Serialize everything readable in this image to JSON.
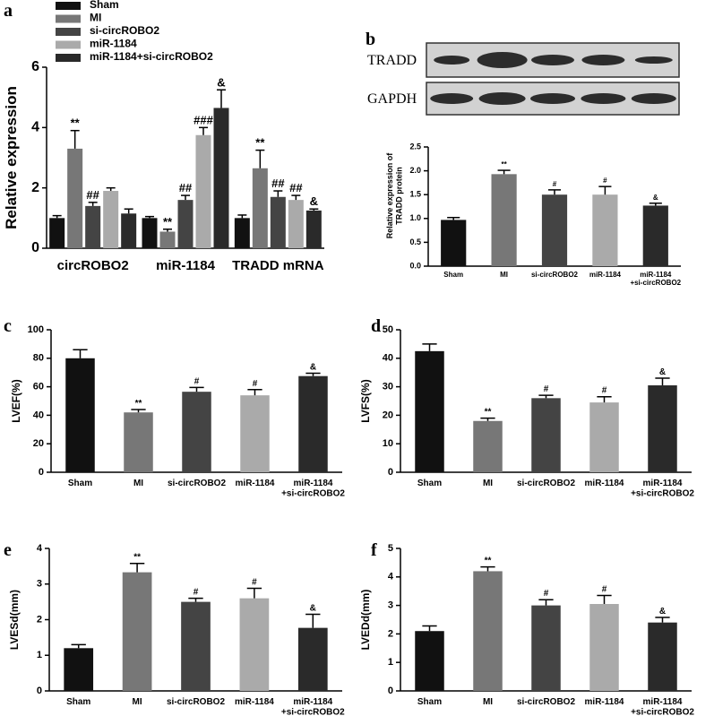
{
  "chart_data": [
    {
      "type": "grouped-bar",
      "panel_label": "a",
      "y_label": "Relative expression",
      "categories": [
        "circROBO2",
        "miR-1184",
        "TRADD mRNA"
      ],
      "series": [
        {
          "name": "Sham",
          "color": "#111111",
          "values": [
            1.0,
            1.0,
            1.0
          ],
          "errors": [
            0.08,
            0.05,
            0.1
          ],
          "annotations": [
            null,
            null,
            null
          ]
        },
        {
          "name": "MI",
          "color": "#777777",
          "values": [
            3.3,
            0.55,
            2.65
          ],
          "errors": [
            0.6,
            0.08,
            0.6
          ],
          "annotations": [
            "**",
            "**",
            "**"
          ]
        },
        {
          "name": "si-circROBO2",
          "color": "#444444",
          "values": [
            1.4,
            1.6,
            1.7
          ],
          "errors": [
            0.12,
            0.15,
            0.2
          ],
          "annotations": [
            "##",
            "##",
            "##"
          ]
        },
        {
          "name": "miR-1184",
          "color": "#aaaaaa",
          "values": [
            1.9,
            3.75,
            1.6
          ],
          "errors": [
            0.1,
            0.25,
            0.15
          ],
          "annotations": [
            null,
            "###",
            "##"
          ]
        },
        {
          "name": "miR-1184+si-circROBO2",
          "color": "#2a2a2a",
          "values": [
            1.15,
            4.65,
            1.25
          ],
          "errors": [
            0.15,
            0.6,
            0.05
          ],
          "annotations": [
            null,
            "&",
            "&"
          ]
        }
      ],
      "ylim": [
        0,
        6
      ],
      "yticks": [
        0,
        2,
        4,
        6
      ]
    },
    {
      "type": "bar",
      "panel_label": "b",
      "blot_labels": [
        "TRADD",
        "GAPDH"
      ],
      "y_label": "Relative expression of\nTRADD protein",
      "categories": [
        "Sham",
        "MI",
        "si-circROBO2",
        "miR-1184",
        "miR-1184\n+si-circROBO2"
      ],
      "values": [
        0.97,
        1.93,
        1.5,
        1.5,
        1.27
      ],
      "errors": [
        0.05,
        0.08,
        0.1,
        0.17,
        0.05
      ],
      "annotations": [
        null,
        "**",
        "#",
        "#",
        "&"
      ],
      "colors": [
        "#111111",
        "#777777",
        "#444444",
        "#aaaaaa",
        "#2a2a2a"
      ],
      "ylim": [
        0,
        2.5
      ],
      "yticks": [
        {
          "value": 0,
          "label": "0.0"
        },
        0.5,
        {
          "value": 1,
          "label": "1.0"
        },
        1.5,
        {
          "value": 2,
          "label": "2.0"
        },
        2.5
      ]
    },
    {
      "type": "bar",
      "panel_label": "c",
      "y_label": "LVEF(%)",
      "categories": [
        "Sham",
        "MI",
        "si-circROBO2",
        "miR-1184",
        "miR-1184\n+si-circROBO2"
      ],
      "values": [
        80,
        42,
        56.5,
        54,
        67.5
      ],
      "errors": [
        6,
        2,
        3,
        4,
        2
      ],
      "annotations": [
        null,
        "**",
        "#",
        "#",
        "&"
      ],
      "colors": [
        "#111111",
        "#777777",
        "#444444",
        "#aaaaaa",
        "#2a2a2a"
      ],
      "ylim": [
        0,
        100
      ],
      "yticks": [
        0,
        20,
        40,
        60,
        80,
        100
      ]
    },
    {
      "type": "bar",
      "panel_label": "d",
      "y_label": "LVFS(%)",
      "categories": [
        "Sham",
        "MI",
        "si-circROBO2",
        "miR-1184",
        "miR-1184\n+si-circROBO2"
      ],
      "values": [
        42.5,
        18,
        26,
        24.5,
        30.5
      ],
      "errors": [
        2.5,
        1,
        1,
        2,
        2.5
      ],
      "annotations": [
        null,
        "**",
        "#",
        "#",
        "&"
      ],
      "colors": [
        "#111111",
        "#777777",
        "#444444",
        "#aaaaaa",
        "#2a2a2a"
      ],
      "ylim": [
        0,
        50
      ],
      "yticks": [
        0,
        10,
        20,
        30,
        40,
        50
      ]
    },
    {
      "type": "bar",
      "panel_label": "e",
      "y_label": "LVESd(mm)",
      "categories": [
        "Sham",
        "MI",
        "si-circROBO2",
        "miR-1184",
        "miR-1184\n+si-circROBO2"
      ],
      "values": [
        1.2,
        3.33,
        2.5,
        2.6,
        1.77
      ],
      "errors": [
        0.1,
        0.25,
        0.1,
        0.28,
        0.38
      ],
      "annotations": [
        null,
        "**",
        "#",
        "#",
        "&"
      ],
      "colors": [
        "#111111",
        "#777777",
        "#444444",
        "#aaaaaa",
        "#2a2a2a"
      ],
      "ylim": [
        0,
        4
      ],
      "yticks": [
        0,
        1,
        2,
        3,
        4
      ]
    },
    {
      "type": "bar",
      "panel_label": "f",
      "y_label": "LVEDd(mm)",
      "categories": [
        "Sham",
        "MI",
        "si-circROBO2",
        "miR-1184",
        "miR-1184\n+si-circROBO2"
      ],
      "values": [
        2.1,
        4.2,
        3.0,
        3.05,
        2.4
      ],
      "errors": [
        0.18,
        0.15,
        0.2,
        0.3,
        0.18
      ],
      "annotations": [
        null,
        "**",
        "#",
        "#",
        "&"
      ],
      "colors": [
        "#111111",
        "#777777",
        "#444444",
        "#aaaaaa",
        "#2a2a2a"
      ],
      "ylim": [
        0,
        5
      ],
      "yticks": [
        0,
        1,
        2,
        3,
        4,
        5
      ]
    }
  ]
}
